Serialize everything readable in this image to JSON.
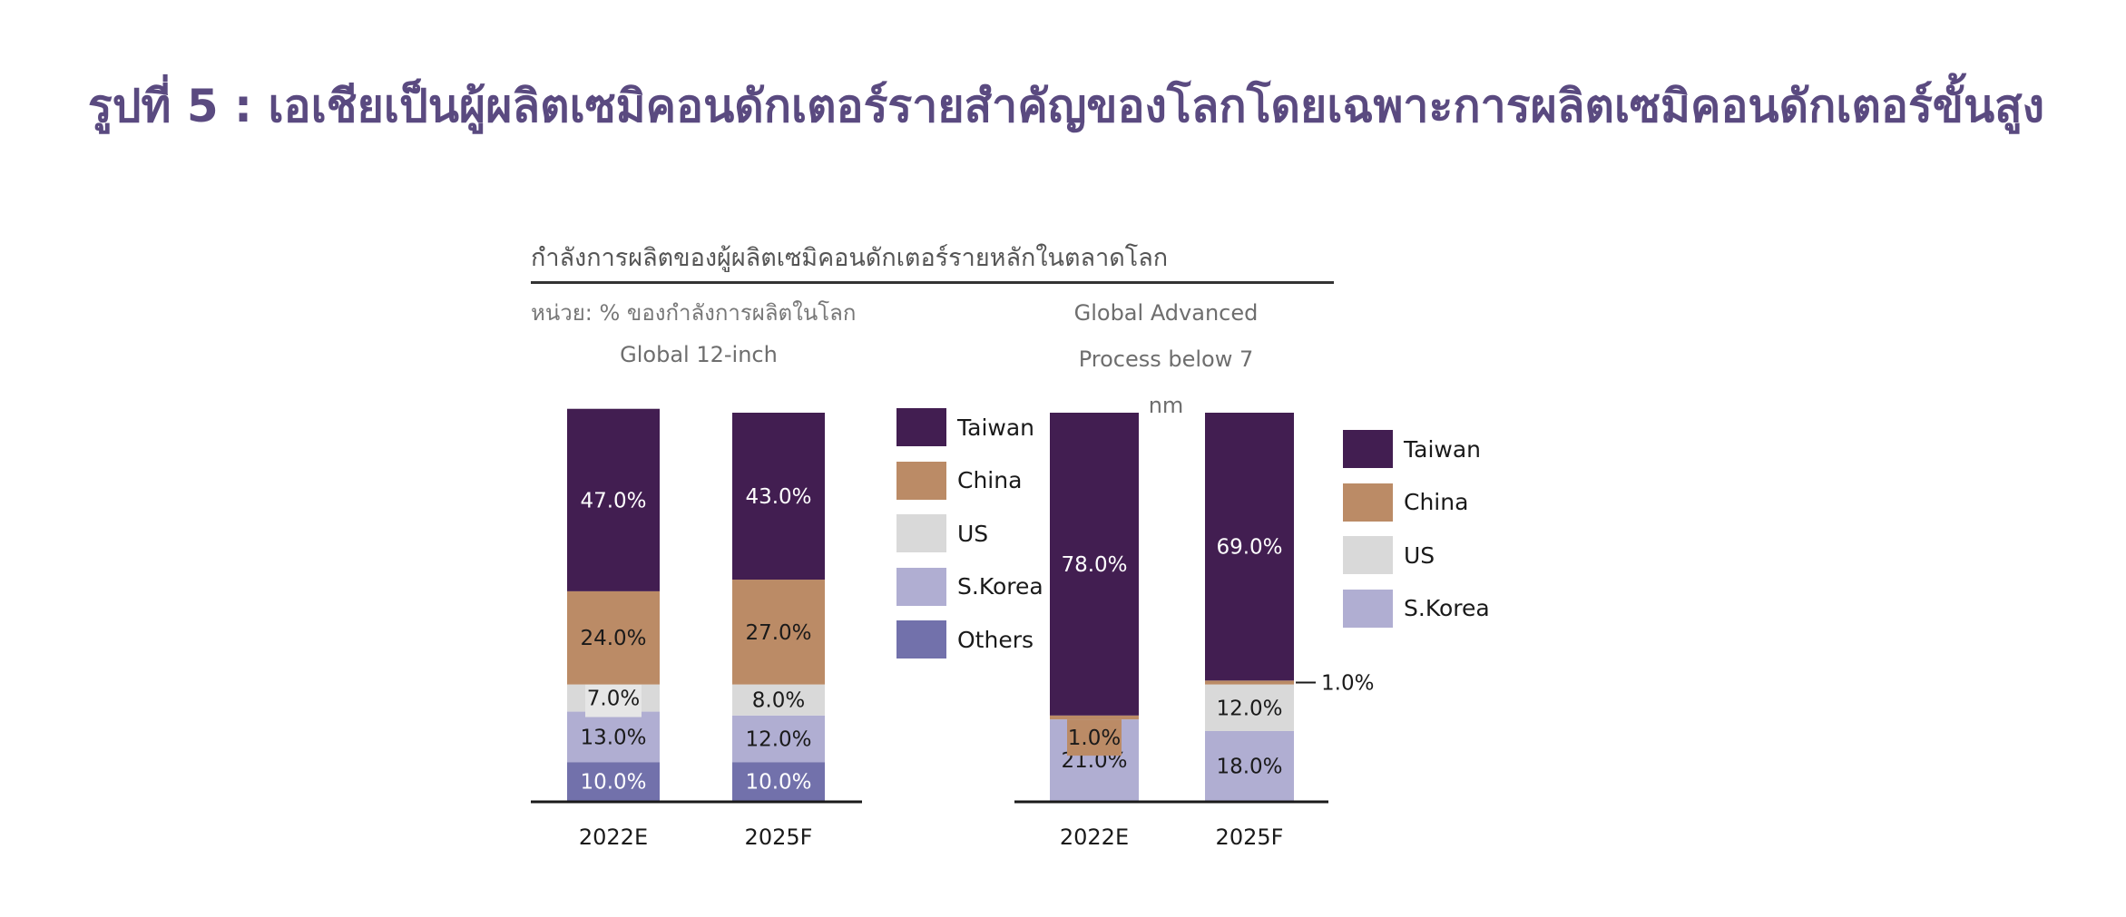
{
  "title": "รูปที่ 5 : เอเชียเป็นผู้ผลิตเซมิคอนดักเตอร์รายสำคัญของโลกโดยเฉพาะการผลิตเซมิคอนดักเตอร์ขั้นสูง",
  "subtitle": "กำลังการผลิตของผู้ผลิตเซมิคอนดักเตอร์รายหลักในตลาดโลก",
  "unit": "หน่วย: % ของกำลังการผลิตในโลก",
  "colors": {
    "Taiwan": "#421e51",
    "China": "#bb8b66",
    "US": "#d9d9d9",
    "S.Korea": "#b0aed2",
    "Others": "#7271ab"
  },
  "chart_data": [
    {
      "type": "bar",
      "stacked": true,
      "title": "Global 12-inch",
      "categories": [
        "2022E",
        "2025F"
      ],
      "ylim": [
        0,
        100
      ],
      "series": [
        {
          "name": "Others",
          "values": [
            10.0,
            10.0
          ],
          "labels": [
            "10.0%",
            "10.0%"
          ]
        },
        {
          "name": "S.Korea",
          "values": [
            13.0,
            12.0
          ],
          "labels": [
            "13.0%",
            "12.0%"
          ]
        },
        {
          "name": "US",
          "values": [
            7.0,
            8.0
          ],
          "labels": [
            "7.0%",
            "8.0%"
          ]
        },
        {
          "name": "China",
          "values": [
            24.0,
            27.0
          ],
          "labels": [
            "24.0%",
            "27.0%"
          ]
        },
        {
          "name": "Taiwan",
          "values": [
            47.0,
            43.0
          ],
          "labels": [
            "47.0%",
            "43.0%"
          ]
        }
      ],
      "legend": [
        "Taiwan",
        "China",
        "US",
        "S.Korea",
        "Others"
      ]
    },
    {
      "type": "bar",
      "stacked": true,
      "title": "Global Advanced\nProcess below 7\nnm",
      "categories": [
        "2022E",
        "2025F"
      ],
      "ylim": [
        0,
        100
      ],
      "series": [
        {
          "name": "S.Korea",
          "values": [
            21.0,
            18.0
          ],
          "labels": [
            "21.0%",
            "18.0%"
          ]
        },
        {
          "name": "US",
          "values": [
            0,
            12.0
          ],
          "labels": [
            "",
            "12.0%"
          ]
        },
        {
          "name": "China",
          "values": [
            1.0,
            1.0
          ],
          "labels": [
            "1.0%",
            "1.0%"
          ]
        },
        {
          "name": "Taiwan",
          "values": [
            78.0,
            69.0
          ],
          "labels": [
            "78.0%",
            "69.0%"
          ]
        }
      ],
      "legend": [
        "Taiwan",
        "China",
        "US",
        "S.Korea"
      ]
    }
  ]
}
